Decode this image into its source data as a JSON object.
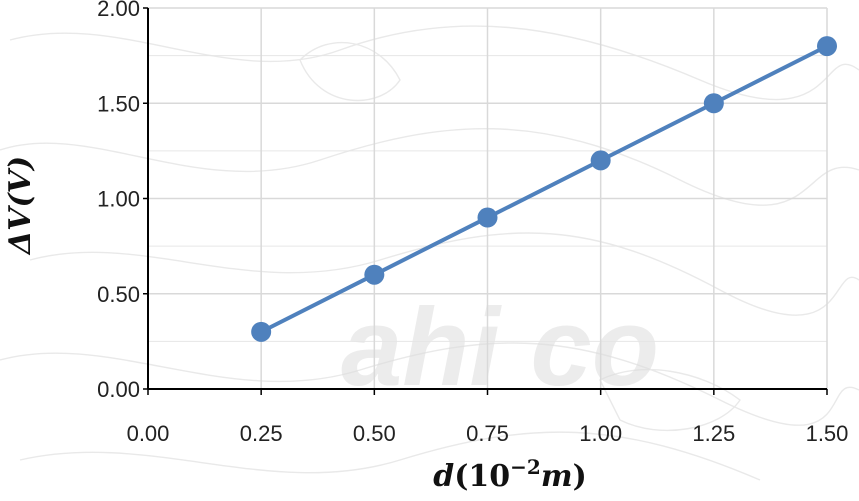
{
  "chart_data": {
    "type": "line",
    "x": [
      0.25,
      0.5,
      0.75,
      1.0,
      1.25,
      1.5
    ],
    "series": [
      {
        "values": [
          0.3,
          0.6,
          0.9,
          1.2,
          1.5,
          1.8
        ]
      }
    ],
    "xlabel_main": "d",
    "xlabel_paren_open": "(",
    "xlabel_base": "10",
    "xlabel_exp": "−2",
    "xlabel_unit": "m",
    "xlabel_paren_close": ")",
    "ylabel": "ΔV(V)",
    "xlim": [
      0.0,
      1.5
    ],
    "ylim": [
      0.0,
      2.0
    ],
    "xticks": [
      "0.00",
      "0.25",
      "0.50",
      "0.75",
      "1.00",
      "1.25",
      "1.50"
    ],
    "yticks": [
      "0.00",
      "0.50",
      "1.00",
      "1.50",
      "2.00"
    ],
    "grid": true,
    "line_color": "#4f81bd",
    "marker_color": "#4f81bd",
    "watermark_text": "ahi co"
  }
}
